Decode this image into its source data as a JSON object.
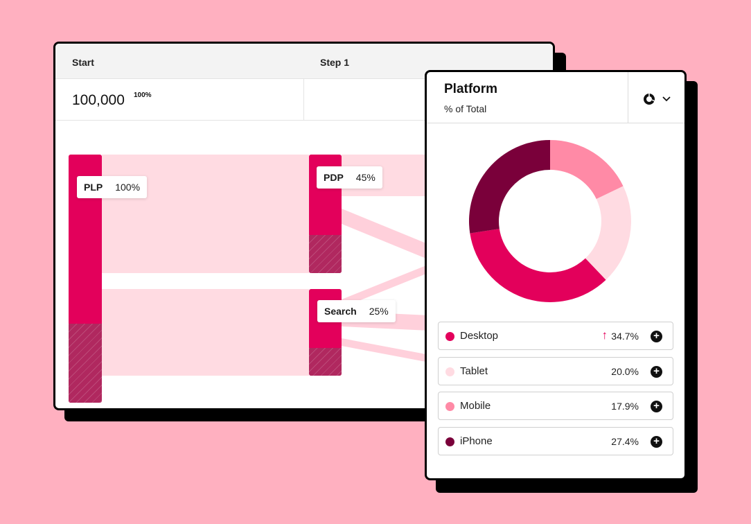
{
  "funnel": {
    "columns": [
      "Start",
      "Step 1"
    ],
    "start_value": "100,000",
    "start_percent": "100%",
    "nodes": [
      {
        "name": "PLP",
        "percent": "100%"
      },
      {
        "name": "PDP",
        "percent": "45%"
      },
      {
        "name": "Search",
        "percent": "25%"
      }
    ]
  },
  "platform": {
    "title": "Platform",
    "subtitle": "% of Total",
    "items": [
      {
        "label": "Desktop",
        "value": "34.7%",
        "trend": "up"
      },
      {
        "label": "Tablet",
        "value": "20.0%"
      },
      {
        "label": "Mobile",
        "value": "17.9%"
      },
      {
        "label": "iPhone",
        "value": "27.4%"
      }
    ]
  },
  "icons": {
    "chart_type_toggle": "donut-chart-icon",
    "dropdown": "chevron-down-icon",
    "trend": "arrow-up-icon",
    "add": "plus-circle-icon"
  },
  "colors": {
    "background": "#ffb0c0",
    "primary": "#e3005b",
    "dark": "#7a003a",
    "light": "#ffdbe2",
    "medium": "#ff8aa6",
    "hatch": "#b0285f"
  }
}
